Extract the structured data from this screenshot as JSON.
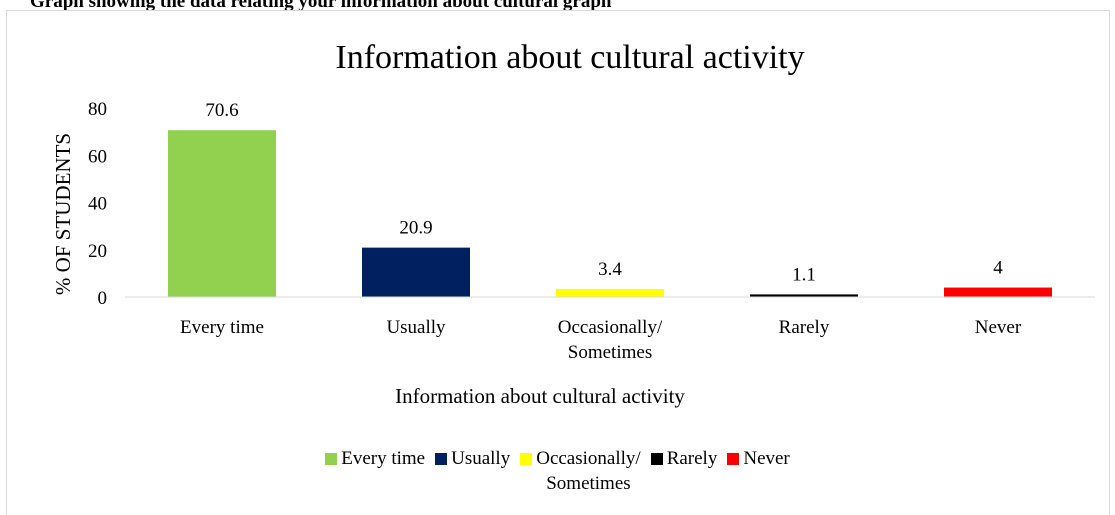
{
  "clipped_caption": "Graph showing the data relating your information about cultural graph",
  "chart_data": {
    "type": "bar",
    "title": "Information about cultural activity",
    "xlabel": "Information about cultural activity",
    "ylabel": "% OF STUDENTS",
    "ylim": [
      0,
      80
    ],
    "yticks": [
      0,
      20,
      40,
      60,
      80
    ],
    "grid": false,
    "legend_position": "bottom",
    "categories": [
      "Every time",
      "Usually",
      "Occasionally/ Sometimes",
      "Rarely",
      "Never"
    ],
    "values": [
      70.6,
      20.9,
      3.4,
      1.1,
      4
    ],
    "value_labels": [
      "70.6",
      "20.9",
      "3.4",
      "1.1",
      "4"
    ],
    "colors": [
      "#92d050",
      "#002060",
      "#ffff00",
      "#000000",
      "#ff0000"
    ]
  }
}
